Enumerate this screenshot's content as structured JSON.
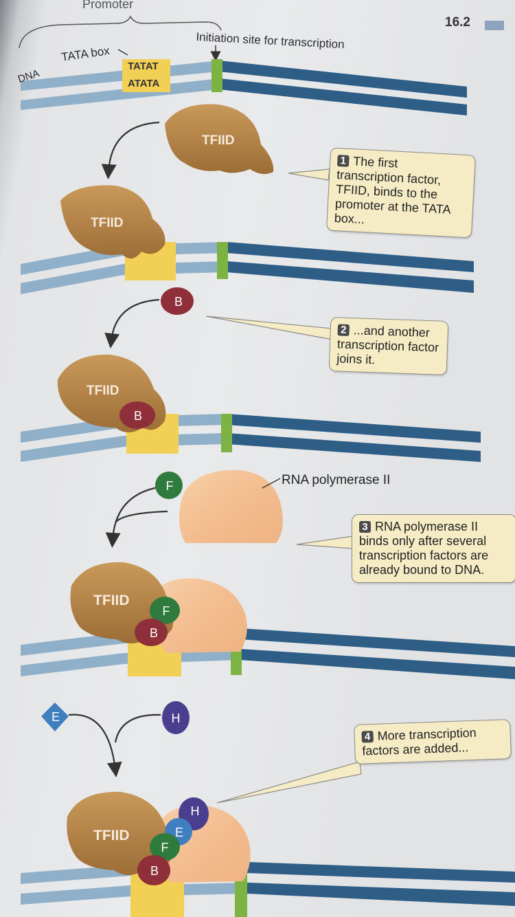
{
  "header": {
    "promoter": "Promoter",
    "section_number": "16.2",
    "initiation_site": "Initiation site for transcription",
    "tata_box": "TATA box",
    "dna": "DNA",
    "seq_top": "TATAT",
    "seq_bottom": "ATATA"
  },
  "proteins": {
    "tfiid": "TFIID",
    "b": "B",
    "f": "F",
    "e": "E",
    "h": "H",
    "rna_pol_label": "RNA polymerase II"
  },
  "steps": [
    {
      "number": "1",
      "text": "The first transcription factor, TFIID, binds to the promoter at the TATA box..."
    },
    {
      "number": "2",
      "text": "...and another transcription factor joins it."
    },
    {
      "number": "3",
      "text": "RNA polymerase II binds only after several transcription factors are already bound to DNA."
    },
    {
      "number": "4",
      "text": "More transcription factors are added..."
    }
  ],
  "colors": {
    "dna_light": "#8fb0c8",
    "dna_dark": "#2e5d86",
    "tata_yellow": "#f2cf55",
    "initiation_green": "#7cb342",
    "tfiid_brown": "#b98a4e",
    "factor_b": "#8e2f3a",
    "factor_f": "#2f7a3d",
    "factor_e": "#3f7fbf",
    "factor_h": "#4a3f8f",
    "rna_pol": "#f3c197",
    "callout_bg": "#f5ecc6"
  }
}
